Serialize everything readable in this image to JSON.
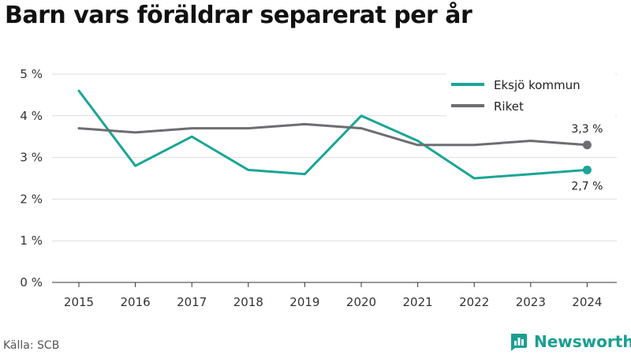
{
  "title": "Barn vars föräldrar separerat per år",
  "source": "Källa: SCB",
  "brand": {
    "name": "Newsworthy",
    "icon": "newsworthy-logo-icon",
    "color": "#1a9e93"
  },
  "chart_data": {
    "type": "line",
    "x": [
      2015,
      2016,
      2017,
      2018,
      2019,
      2020,
      2021,
      2022,
      2023,
      2024
    ],
    "ylim": [
      0,
      5
    ],
    "yticks": [
      "0 %",
      "1 %",
      "2 %",
      "3 %",
      "4 %",
      "5 %"
    ],
    "grid": true,
    "legend_position": "top-right",
    "series": [
      {
        "name": "Eksjö kommun",
        "color": "#1aa596",
        "values": [
          4.6,
          2.8,
          3.5,
          2.7,
          2.6,
          4.0,
          3.4,
          2.5,
          2.6,
          2.7
        ],
        "end_label": "2,7 %"
      },
      {
        "name": "Riket",
        "color": "#6d6d72",
        "values": [
          3.7,
          3.6,
          3.7,
          3.7,
          3.8,
          3.7,
          3.3,
          3.3,
          3.4,
          3.3
        ],
        "end_label": "3,3 %"
      }
    ]
  }
}
